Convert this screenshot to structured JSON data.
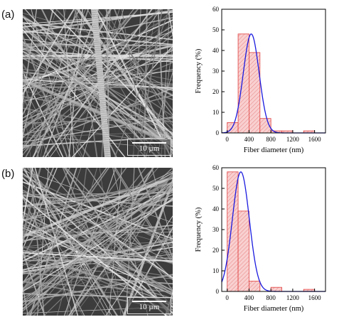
{
  "panels": [
    {
      "label": "(a)",
      "scale_bar": "10 µm",
      "texture_seed": 7,
      "thick_fiber": true
    },
    {
      "label": "(b)",
      "scale_bar": "10 µm",
      "texture_seed": 19,
      "thick_fiber": false
    }
  ],
  "chart_data": [
    {
      "type": "bar",
      "xlabel": "Fiber diameter (nm)",
      "ylabel": "Frequency (%)",
      "xlim": [
        -100,
        1800
      ],
      "ylim": [
        0,
        60
      ],
      "xticks": [
        0,
        400,
        800,
        1200,
        1600
      ],
      "yticks": [
        0,
        10,
        20,
        30,
        40,
        50,
        60
      ],
      "bin_width": 200,
      "bins": [
        {
          "x": 0,
          "value": 5
        },
        {
          "x": 200,
          "value": 48
        },
        {
          "x": 400,
          "value": 39
        },
        {
          "x": 600,
          "value": 7
        },
        {
          "x": 800,
          "value": 1
        },
        {
          "x": 1000,
          "value": 1
        },
        {
          "x": 1400,
          "value": 1
        }
      ],
      "fit_curve": {
        "type": "gaussian",
        "peak": 48,
        "center": 440,
        "sigma": 145
      },
      "colors": {
        "bar_fill": "#f9d0d0",
        "bar_hatch": "#e06060",
        "bar_edge": "#e04040",
        "curve": "#1a1adf"
      }
    },
    {
      "type": "bar",
      "xlabel": "Fiber diameter (nm)",
      "ylabel": "Frequency (%)",
      "xlim": [
        -100,
        1800
      ],
      "ylim": [
        0,
        60
      ],
      "xticks": [
        0,
        400,
        800,
        1200,
        1600
      ],
      "yticks": [
        0,
        10,
        20,
        30,
        40,
        50,
        60
      ],
      "bin_width": 200,
      "bins": [
        {
          "x": 0,
          "value": 58
        },
        {
          "x": 200,
          "value": 39
        },
        {
          "x": 400,
          "value": 5
        },
        {
          "x": 800,
          "value": 2
        },
        {
          "x": 1400,
          "value": 1
        }
      ],
      "fit_curve": {
        "type": "gaussian",
        "peak": 58,
        "center": 250,
        "sigma": 155
      },
      "colors": {
        "bar_fill": "#f9d0d0",
        "bar_hatch": "#e06060",
        "bar_edge": "#e04040",
        "curve": "#1a1adf"
      }
    }
  ]
}
